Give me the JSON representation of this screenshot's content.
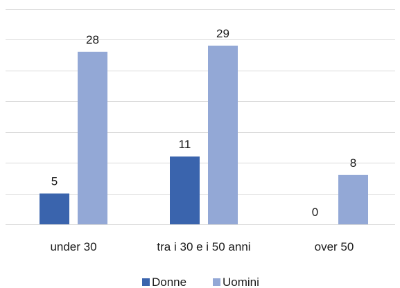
{
  "colors": {
    "donne": "#3a64ad",
    "uomini": "#93a8d6",
    "grid": "#d9d9d9",
    "text": "#1a1a1a"
  },
  "chart_data": {
    "type": "bar",
    "categories": [
      "under 30",
      "tra i 30 e i 50 anni",
      "over 50"
    ],
    "series": [
      {
        "name": "Donne",
        "values": [
          5,
          11,
          0
        ]
      },
      {
        "name": "Uomini",
        "values": [
          28,
          29,
          8
        ]
      }
    ],
    "ylim": [
      0,
      35
    ],
    "grid": true,
    "legend": "bottom",
    "data_labels": true
  }
}
